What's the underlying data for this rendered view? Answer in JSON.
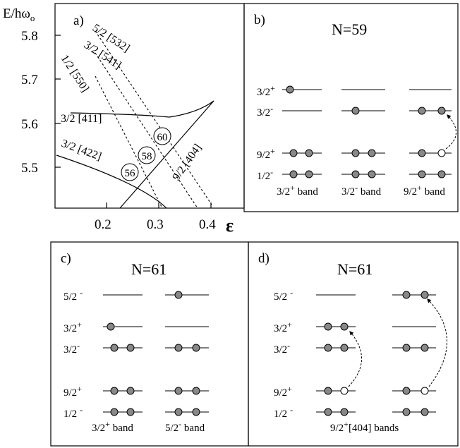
{
  "panel_a": {
    "label": "a)",
    "ylabel_main": "E/hω",
    "ylabel_sub": "o",
    "xlabel": "ε",
    "y_ticks": [
      "5.8",
      "5.7",
      "5.6",
      "5.5"
    ],
    "x_ticks": [
      "0.2",
      "0.3",
      "0.4"
    ],
    "orbitals": [
      "5/2 [532]",
      "3/2 [541]",
      "1/2 [550]",
      "3/2 [411]",
      "3/2 [422]",
      "9/2 [404]"
    ],
    "gaps": [
      "56",
      "58",
      "60"
    ]
  },
  "panel_b": {
    "label": "b)",
    "title": "N=59",
    "levels": [
      "3/2",
      "3/2",
      "9/2",
      "1/2"
    ],
    "parities": [
      "+",
      "-",
      "+",
      "-"
    ],
    "bands": [
      {
        "name": "3/2",
        "parity": "+",
        "suffix": " band"
      },
      {
        "name": "3/2",
        "parity": "-",
        "suffix": " band"
      },
      {
        "name": "9/2",
        "parity": "+",
        "suffix": " band"
      }
    ]
  },
  "panel_c": {
    "label": "c)",
    "title": "N=61",
    "levels": [
      "5/2",
      "3/2",
      "3/2",
      "9/2",
      "1/2"
    ],
    "parities": [
      "-",
      "+",
      "-",
      "+",
      "-"
    ],
    "bands": [
      {
        "name": "3/2",
        "parity": "+",
        "suffix": " band"
      },
      {
        "name": "5/2",
        "parity": "-",
        "suffix": " band"
      }
    ]
  },
  "panel_d": {
    "label": "d)",
    "title": "N=61",
    "levels": [
      "5/2",
      "3/2",
      "3/2",
      "9/2",
      "1/2"
    ],
    "parities": [
      "-",
      "+",
      "-",
      "+",
      "-"
    ],
    "band_name": "9/2",
    "band_parity": "+",
    "band_suffix": "[404] bands"
  }
}
